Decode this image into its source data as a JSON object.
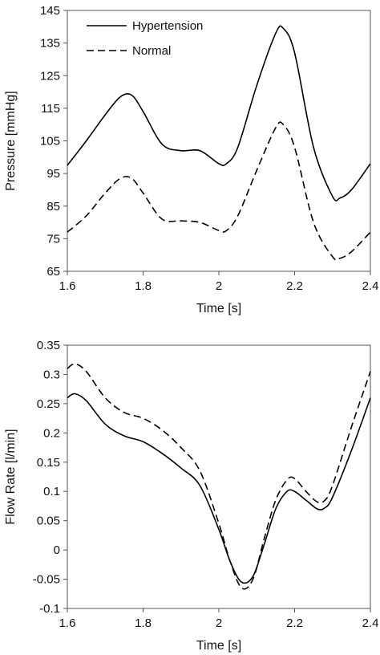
{
  "chart_data": [
    {
      "type": "line",
      "xlabel": "Time [s]",
      "ylabel": "Pressure [mmHg]",
      "xlim": [
        1.6,
        2.4
      ],
      "ylim": [
        65,
        145
      ],
      "xticks": [
        1.6,
        1.8,
        2.0,
        2.2,
        2.4
      ],
      "xtick_labels": [
        "1.6",
        "1.8",
        "2",
        "2.2",
        "2.4"
      ],
      "yticks": [
        65,
        75,
        85,
        95,
        105,
        115,
        125,
        135,
        145
      ],
      "ytick_labels": [
        "65",
        "75",
        "85",
        "95",
        "105",
        "115",
        "125",
        "135",
        "145"
      ],
      "grid": false,
      "legend": "top-left",
      "series": [
        {
          "name": "Hypertension",
          "style": "solid",
          "x": [
            1.6,
            1.65,
            1.7,
            1.74,
            1.77,
            1.8,
            1.85,
            1.9,
            1.95,
            2.0,
            2.02,
            2.05,
            2.1,
            2.15,
            2.17,
            2.2,
            2.25,
            2.3,
            2.32,
            2.35,
            2.4
          ],
          "y": [
            97.5,
            105,
            113,
            118.5,
            119,
            114,
            104,
            102,
            102,
            98,
            98,
            103,
            122,
            138,
            139.5,
            132,
            103,
            88,
            87.5,
            90,
            98
          ]
        },
        {
          "name": "Normal",
          "style": "dashed",
          "x": [
            1.6,
            1.65,
            1.7,
            1.74,
            1.77,
            1.8,
            1.85,
            1.9,
            1.95,
            2.0,
            2.02,
            2.05,
            2.1,
            2.15,
            2.17,
            2.2,
            2.25,
            2.3,
            2.32,
            2.35,
            2.4
          ],
          "y": [
            77,
            82,
            89,
            93.5,
            93.5,
            89,
            81,
            80.5,
            80,
            77.5,
            77.5,
            82,
            96,
            109,
            110,
            103,
            80,
            69.5,
            69,
            71,
            77
          ]
        }
      ]
    },
    {
      "type": "line",
      "xlabel": "Time [s]",
      "ylabel": "Flow Rate [l/min]",
      "xlim": [
        1.6,
        2.4
      ],
      "ylim": [
        -0.1,
        0.35
      ],
      "xticks": [
        1.6,
        1.8,
        2.0,
        2.2,
        2.4
      ],
      "xtick_labels": [
        "1.6",
        "1.8",
        "2",
        "2.2",
        "2.4"
      ],
      "yticks": [
        -0.1,
        -0.05,
        0,
        0.05,
        0.1,
        0.15,
        0.2,
        0.25,
        0.3,
        0.35
      ],
      "ytick_labels": [
        "-0.1",
        "-0.05",
        "0",
        "0.05",
        "0.1",
        "0.15",
        "0.2",
        "0.25",
        "0.3",
        "0.35"
      ],
      "grid": false,
      "legend": "none",
      "series": [
        {
          "name": "Hypertension",
          "style": "solid",
          "x": [
            1.6,
            1.62,
            1.65,
            1.7,
            1.75,
            1.8,
            1.85,
            1.9,
            1.95,
            2.0,
            2.03,
            2.06,
            2.09,
            2.12,
            2.15,
            2.18,
            2.2,
            2.23,
            2.26,
            2.28,
            2.3,
            2.35,
            2.4
          ],
          "y": [
            0.26,
            0.267,
            0.255,
            0.215,
            0.195,
            0.185,
            0.165,
            0.14,
            0.11,
            0.035,
            -0.02,
            -0.055,
            -0.045,
            0.01,
            0.07,
            0.1,
            0.1,
            0.085,
            0.07,
            0.072,
            0.09,
            0.17,
            0.26
          ]
        },
        {
          "name": "Normal",
          "style": "dashed",
          "x": [
            1.6,
            1.62,
            1.65,
            1.7,
            1.75,
            1.8,
            1.85,
            1.9,
            1.95,
            2.0,
            2.03,
            2.06,
            2.09,
            2.12,
            2.15,
            2.18,
            2.2,
            2.23,
            2.26,
            2.28,
            2.3,
            2.35,
            2.4
          ],
          "y": [
            0.31,
            0.318,
            0.305,
            0.26,
            0.235,
            0.225,
            0.205,
            0.175,
            0.135,
            0.045,
            -0.02,
            -0.065,
            -0.05,
            0.02,
            0.085,
            0.12,
            0.122,
            0.1,
            0.082,
            0.085,
            0.11,
            0.21,
            0.305
          ]
        }
      ]
    }
  ]
}
